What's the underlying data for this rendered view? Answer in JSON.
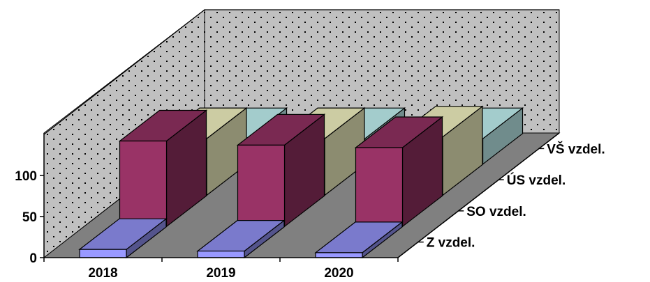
{
  "chart_data": {
    "type": "bar",
    "style": "3d-clustered-depth",
    "categories": [
      "2018",
      "2019",
      "2020"
    ],
    "series": [
      {
        "name": "Z vzdel.",
        "values": [
          10,
          8,
          6
        ],
        "color": "#9999ff"
      },
      {
        "name": "SO vzdel.",
        "values": [
          104,
          99,
          96
        ],
        "color": "#993366"
      },
      {
        "name": "ÚS vzdel.",
        "values": [
          69,
          69,
          71
        ],
        "color": "#ffffcc"
      },
      {
        "name": "VŠ vzdel.",
        "values": [
          31,
          31,
          31
        ],
        "color": "#ccffff"
      }
    ],
    "ylim": [
      0,
      150
    ],
    "yticks": [
      0,
      50,
      100
    ],
    "title": "",
    "xlabel": "",
    "ylabel": "",
    "grid": true,
    "gridlines": [
      150
    ],
    "wall_pattern": "dotted",
    "wall_color": "#c0c0c0",
    "floor_color": "#808080"
  }
}
